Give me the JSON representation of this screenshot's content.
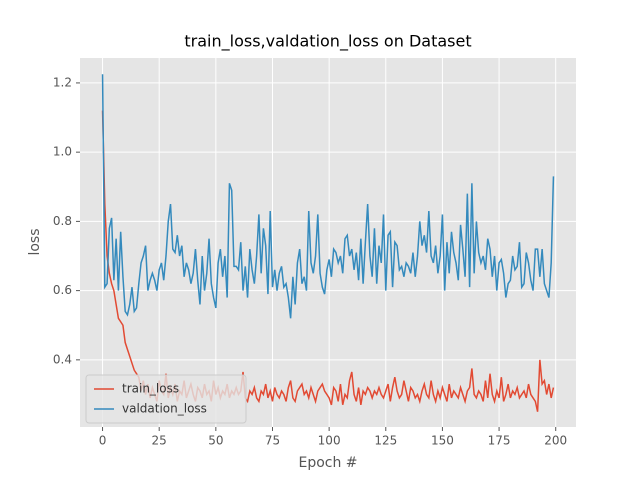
{
  "chart_data": {
    "type": "line",
    "title": "train_loss,valdation_loss on Dataset",
    "x_label": "Epoch #",
    "y_label": "loss",
    "x": [
      0,
      1,
      2,
      3,
      4,
      5,
      6,
      7,
      8,
      9,
      10,
      11,
      12,
      13,
      14,
      15,
      16,
      17,
      18,
      19,
      20,
      21,
      22,
      23,
      24,
      25,
      26,
      27,
      28,
      29,
      30,
      31,
      32,
      33,
      34,
      35,
      36,
      37,
      38,
      39,
      40,
      41,
      42,
      43,
      44,
      45,
      46,
      47,
      48,
      49,
      50,
      51,
      52,
      53,
      54,
      55,
      56,
      57,
      58,
      59,
      60,
      61,
      62,
      63,
      64,
      65,
      66,
      67,
      68,
      69,
      70,
      71,
      72,
      73,
      74,
      75,
      76,
      77,
      78,
      79,
      80,
      81,
      82,
      83,
      84,
      85,
      86,
      87,
      88,
      89,
      90,
      91,
      92,
      93,
      94,
      95,
      96,
      97,
      98,
      99,
      100,
      101,
      102,
      103,
      104,
      105,
      106,
      107,
      108,
      109,
      110,
      111,
      112,
      113,
      114,
      115,
      116,
      117,
      118,
      119,
      120,
      121,
      122,
      123,
      124,
      125,
      126,
      127,
      128,
      129,
      130,
      131,
      132,
      133,
      134,
      135,
      136,
      137,
      138,
      139,
      140,
      141,
      142,
      143,
      144,
      145,
      146,
      147,
      148,
      149,
      150,
      151,
      152,
      153,
      154,
      155,
      156,
      157,
      158,
      159,
      160,
      161,
      162,
      163,
      164,
      165,
      166,
      167,
      168,
      169,
      170,
      171,
      172,
      173,
      174,
      175,
      176,
      177,
      178,
      179,
      180,
      181,
      182,
      183,
      184,
      185,
      186,
      187,
      188,
      189,
      190,
      191,
      192,
      193,
      194,
      195,
      196,
      197,
      198,
      199
    ],
    "series": [
      {
        "name": "train_loss",
        "color": "#E24A33",
        "values": [
          1.12,
          0.85,
          0.7,
          0.65,
          0.62,
          0.6,
          0.56,
          0.52,
          0.51,
          0.5,
          0.45,
          0.43,
          0.41,
          0.39,
          0.37,
          0.36,
          0.35,
          0.31,
          0.34,
          0.3,
          0.33,
          0.29,
          0.32,
          0.3,
          0.28,
          0.34,
          0.31,
          0.3,
          0.36,
          0.29,
          0.32,
          0.3,
          0.33,
          0.28,
          0.31,
          0.3,
          0.34,
          0.29,
          0.31,
          0.33,
          0.3,
          0.28,
          0.32,
          0.31,
          0.29,
          0.33,
          0.3,
          0.31,
          0.28,
          0.34,
          0.3,
          0.32,
          0.29,
          0.31,
          0.3,
          0.33,
          0.29,
          0.31,
          0.3,
          0.32,
          0.3,
          0.31,
          0.365,
          0.29,
          0.28,
          0.31,
          0.3,
          0.32,
          0.29,
          0.28,
          0.31,
          0.3,
          0.33,
          0.29,
          0.31,
          0.28,
          0.32,
          0.3,
          0.29,
          0.31,
          0.3,
          0.28,
          0.32,
          0.34,
          0.29,
          0.28,
          0.31,
          0.32,
          0.33,
          0.3,
          0.31,
          0.29,
          0.32,
          0.3,
          0.28,
          0.31,
          0.32,
          0.33,
          0.31,
          0.3,
          0.29,
          0.27,
          0.32,
          0.31,
          0.28,
          0.33,
          0.27,
          0.3,
          0.29,
          0.34,
          0.365,
          0.3,
          0.28,
          0.32,
          0.27,
          0.31,
          0.3,
          0.32,
          0.31,
          0.29,
          0.31,
          0.3,
          0.32,
          0.3,
          0.29,
          0.31,
          0.33,
          0.28,
          0.32,
          0.35,
          0.31,
          0.29,
          0.3,
          0.34,
          0.31,
          0.28,
          0.32,
          0.31,
          0.29,
          0.3,
          0.28,
          0.31,
          0.33,
          0.3,
          0.29,
          0.34,
          0.3,
          0.28,
          0.31,
          0.29,
          0.32,
          0.3,
          0.28,
          0.33,
          0.29,
          0.31,
          0.3,
          0.29,
          0.32,
          0.3,
          0.28,
          0.31,
          0.32,
          0.375,
          0.3,
          0.29,
          0.31,
          0.3,
          0.28,
          0.34,
          0.29,
          0.36,
          0.3,
          0.28,
          0.31,
          0.29,
          0.35,
          0.28,
          0.3,
          0.33,
          0.29,
          0.31,
          0.3,
          0.32,
          0.29,
          0.3,
          0.31,
          0.29,
          0.33,
          0.3,
          0.29,
          0.28,
          0.25,
          0.4,
          0.33,
          0.34,
          0.3,
          0.33,
          0.29,
          0.32
        ]
      },
      {
        "name": "valdation_loss",
        "color": "#348ABD",
        "values": [
          1.225,
          0.61,
          0.62,
          0.78,
          0.81,
          0.63,
          0.75,
          0.6,
          0.77,
          0.64,
          0.54,
          0.53,
          0.56,
          0.61,
          0.54,
          0.55,
          0.62,
          0.68,
          0.7,
          0.73,
          0.6,
          0.63,
          0.65,
          0.63,
          0.6,
          0.66,
          0.68,
          0.63,
          0.7,
          0.8,
          0.85,
          0.72,
          0.71,
          0.76,
          0.7,
          0.73,
          0.64,
          0.68,
          0.66,
          0.62,
          0.65,
          0.72,
          0.63,
          0.56,
          0.7,
          0.6,
          0.65,
          0.75,
          0.62,
          0.58,
          0.55,
          0.68,
          0.72,
          0.64,
          0.7,
          0.58,
          0.91,
          0.89,
          0.67,
          0.67,
          0.66,
          0.74,
          0.6,
          0.67,
          0.58,
          0.72,
          0.66,
          0.62,
          0.7,
          0.82,
          0.65,
          0.78,
          0.73,
          0.59,
          0.83,
          0.61,
          0.66,
          0.6,
          0.65,
          0.67,
          0.61,
          0.62,
          0.58,
          0.52,
          0.64,
          0.56,
          0.68,
          0.72,
          0.62,
          0.64,
          0.6,
          0.83,
          0.68,
          0.65,
          0.7,
          0.82,
          0.65,
          0.61,
          0.59,
          0.66,
          0.69,
          0.64,
          0.72,
          0.71,
          0.68,
          0.7,
          0.65,
          0.75,
          0.76,
          0.7,
          0.72,
          0.66,
          0.71,
          0.63,
          0.75,
          0.62,
          0.74,
          0.85,
          0.7,
          0.64,
          0.78,
          0.62,
          0.73,
          0.68,
          0.82,
          0.6,
          0.76,
          0.77,
          0.61,
          0.74,
          0.73,
          0.66,
          0.67,
          0.64,
          0.68,
          0.67,
          0.65,
          0.71,
          0.64,
          0.7,
          0.8,
          0.73,
          0.76,
          0.71,
          0.83,
          0.7,
          0.68,
          0.73,
          0.65,
          0.7,
          0.82,
          0.6,
          0.74,
          0.65,
          0.77,
          0.71,
          0.68,
          0.63,
          0.79,
          0.72,
          0.64,
          0.88,
          0.61,
          0.91,
          0.65,
          0.8,
          0.71,
          0.68,
          0.7,
          0.66,
          0.75,
          0.72,
          0.64,
          0.7,
          0.6,
          0.68,
          0.69,
          0.65,
          0.58,
          0.62,
          0.63,
          0.7,
          0.66,
          0.67,
          0.74,
          0.61,
          0.62,
          0.71,
          0.68,
          0.63,
          0.6,
          0.72,
          0.72,
          0.64,
          0.72,
          0.62,
          0.6,
          0.58,
          0.68,
          0.93
        ]
      }
    ],
    "xlim": [
      -9.95,
      208.95
    ],
    "xticks": [
      0,
      25,
      50,
      75,
      100,
      125,
      150,
      175,
      200
    ],
    "ylim": [
      0.206,
      1.272
    ],
    "yticks": [
      0.4,
      0.6,
      0.8,
      {
        "value": 1,
        "label": "1.0"
      },
      1.2
    ],
    "grid": true,
    "legend": "lower left"
  }
}
